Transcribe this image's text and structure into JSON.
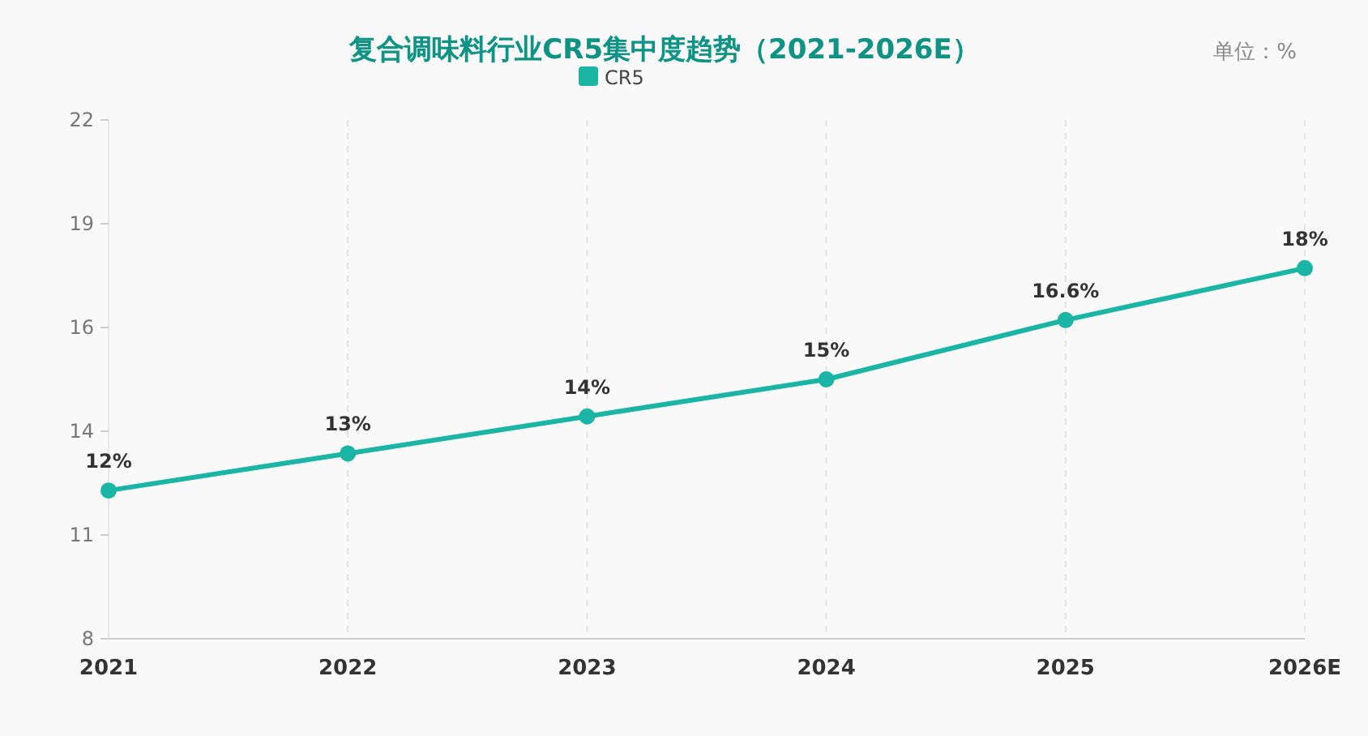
{
  "chart_data": {
    "type": "line",
    "title": "复合调味料行业CR5集中度趋势（2021-2026E）",
    "categories": [
      "2021",
      "2022",
      "2023",
      "2024",
      "2025",
      "2026E"
    ],
    "series": [
      {
        "name": "CR5",
        "color": "#1ab5a5",
        "values": [
          12,
          13,
          14,
          15,
          16.6,
          18
        ]
      }
    ],
    "value_labels": [
      "12%",
      "13%",
      "14%",
      "15%",
      "16.6%",
      "18%"
    ],
    "ylim": [
      8,
      22
    ],
    "yticks": [
      8,
      {
        "value": 10.8,
        "label": "11"
      },
      {
        "value": 13.6,
        "label": "14"
      },
      {
        "value": 16.4,
        "label": "16"
      },
      {
        "value": 19.2,
        "label": "19"
      },
      22
    ],
    "grid": "x",
    "legend": "top",
    "marker": "circle",
    "line_style": "solid",
    "annotations": [
      "单位：%"
    ]
  }
}
